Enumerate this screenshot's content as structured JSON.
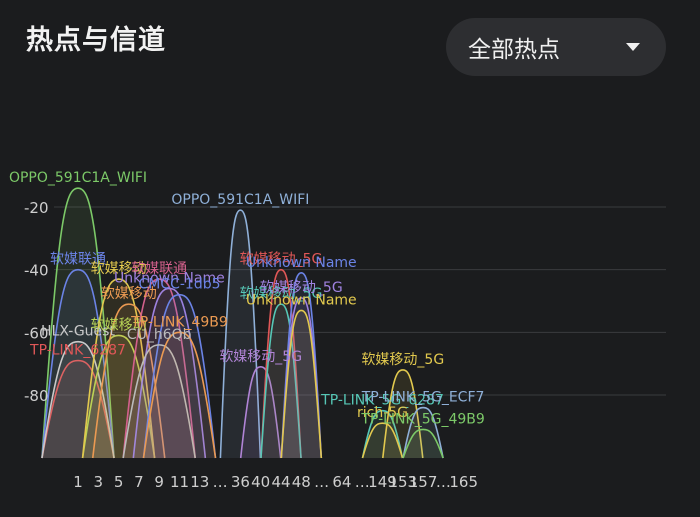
{
  "header": {
    "title": "热点与信道",
    "filter": {
      "selected": "全部热点",
      "icon": "triangle-down-icon"
    }
  },
  "chart_data": {
    "type": "area",
    "xlabel": "",
    "ylabel": "",
    "y_ticks": [
      -20,
      -40,
      -60,
      -80
    ],
    "ylim": [
      -100,
      -10
    ],
    "x_ticks": [
      "1",
      "3",
      "5",
      "7",
      "9",
      "11",
      "13",
      "…",
      "36",
      "40",
      "44",
      "48",
      "…",
      "64",
      "…",
      "149",
      "153",
      "157",
      "…",
      "165"
    ],
    "grid": true,
    "networks": [
      {
        "name": "OPPO_591C1A_WIFI",
        "channel": "1",
        "rssi": -14,
        "color": "#7cc968"
      },
      {
        "name": "软媒联通",
        "channel": "1",
        "rssi": -40,
        "color": "#6b83e6"
      },
      {
        "name": "TP-LINK_6287",
        "channel": "1",
        "rssi": -69,
        "color": "#e05757"
      },
      {
        "name": "HLX-Guest",
        "channel": "1",
        "rssi": -63,
        "color": "#c9c9c9"
      },
      {
        "name": "软媒移动",
        "channel": "5",
        "rssi": -61,
        "color": "#b8d456"
      },
      {
        "name": "软媒移动",
        "channel": "5",
        "rssi": -43,
        "color": "#e2c94e"
      },
      {
        "name": "软媒移动",
        "channel": "6",
        "rssi": -51,
        "color": "#eb9a52"
      },
      {
        "name": "软媒联通",
        "channel": "9",
        "rssi": -43,
        "color": "#d3608c"
      },
      {
        "name": "Unknown Name",
        "channel": "10",
        "rssi": -46,
        "color": "#9f82e0"
      },
      {
        "name": "CMCC-1db5",
        "channel": "11",
        "rssi": -48,
        "color": "#6b83e6"
      },
      {
        "name": "CU_h6Qb",
        "channel": "9",
        "rssi": -64,
        "color": "#bbbbbb"
      },
      {
        "name": "TP-LINK_49B9",
        "channel": "11",
        "rssi": -60,
        "color": "#eb9a52"
      },
      {
        "name": "OPPO_591C1A_WIFI",
        "channel": "36",
        "rssi": -21,
        "color": "#8fb0d8"
      },
      {
        "name": "软媒移动_5G",
        "channel": "40",
        "rssi": -71,
        "color": "#b084d6"
      },
      {
        "name": "软媒移动_5G",
        "channel": "44",
        "rssi": -40,
        "color": "#e05757"
      },
      {
        "name": "软媒移动_5G",
        "channel": "44",
        "rssi": -51,
        "color": "#56c7b6"
      },
      {
        "name": "Unknown Name",
        "channel": "48",
        "rssi": -41,
        "color": "#6b83e6"
      },
      {
        "name": "软媒移动_5G",
        "channel": "48",
        "rssi": -49,
        "color": "#9f82e0"
      },
      {
        "name": "Unknown Name",
        "channel": "48",
        "rssi": -53,
        "color": "#e2c94e"
      },
      {
        "name": "TP-LINK_5G_6287",
        "channel": "149",
        "rssi": -85,
        "color": "#56c7b6"
      },
      {
        "name": "rich-5G",
        "channel": "149",
        "rssi": -89,
        "color": "#e2c94e"
      },
      {
        "name": "软媒移动_5G",
        "channel": "153",
        "rssi": -72,
        "color": "#e2c94e"
      },
      {
        "name": "TP-LINK_5G_ECF7",
        "channel": "157",
        "rssi": -84,
        "color": "#8fb0d8"
      },
      {
        "name": "TP-LINK_5G_49B9",
        "channel": "157",
        "rssi": -91,
        "color": "#7cc968"
      }
    ]
  }
}
